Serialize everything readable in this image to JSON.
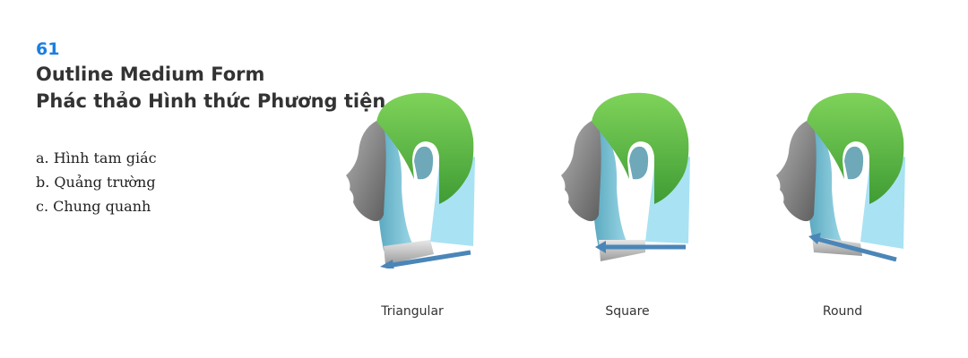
{
  "number": "61",
  "title_en": "Outline Medium Form",
  "title_vi": "Phác thảo Hình thức Phương tiện",
  "options": [
    "a. Hình tam giác",
    "b. Quảng trường",
    "c. Chung quanh"
  ],
  "figures": [
    {
      "label": "Triangular"
    },
    {
      "label": "Square"
    },
    {
      "label": "Round"
    }
  ],
  "colors": {
    "number": "#1a7fe0",
    "hair_top": "#6cc24a",
    "hair_back": "#a9e2f3",
    "neck": "#7cc3d6",
    "face": "#8a8a8a",
    "arrow": "#4a86b8"
  }
}
